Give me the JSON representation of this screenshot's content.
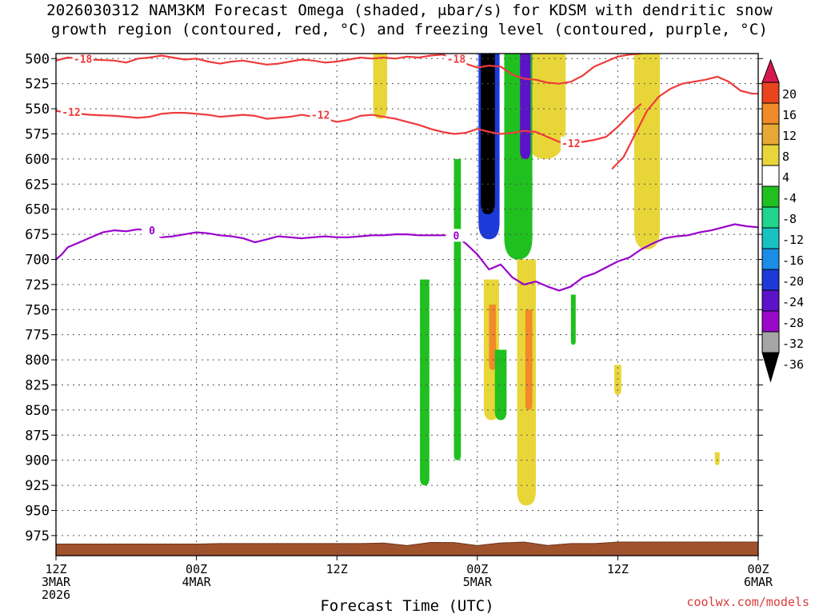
{
  "title": {
    "line1": "2026030312 NAM3KM Forecast Omega (shaded, μbar/s) for KDSM with dendritic snow",
    "line2": "growth region (contoured, red, °C) and freezing level (contoured, purple, °C)"
  },
  "credit": "coolwx.com/models",
  "colors": {
    "dgz_contour": "#ef3b3b",
    "freezing_contour": "#9a00cc",
    "ground": "#a0522d",
    "grid": "#555555"
  },
  "chart_data": {
    "type": "heatmap",
    "title": "2026030312 NAM3KM Forecast Omega (shaded, μbar/s) for KDSM with dendritic snow growth region (contoured, red, °C) and freezing level (contoured, purple, °C)",
    "xlabel": "Forecast Time (UTC)",
    "ylabel": "",
    "x_ticks": [
      {
        "hour": 0,
        "lines": [
          "12Z",
          "3MAR",
          "2026"
        ]
      },
      {
        "hour": 12,
        "lines": [
          "00Z",
          "4MAR"
        ]
      },
      {
        "hour": 24,
        "lines": [
          "12Z"
        ]
      },
      {
        "hour": 36,
        "lines": [
          "00Z",
          "5MAR"
        ]
      },
      {
        "hour": 48,
        "lines": [
          "12Z"
        ]
      },
      {
        "hour": 60,
        "lines": [
          "00Z",
          "6MAR"
        ]
      }
    ],
    "xlim": [
      0,
      60
    ],
    "y_ticks": [
      "500",
      "525",
      "550",
      "575",
      "600",
      "625",
      "650",
      "675",
      "700",
      "725",
      "750",
      "775",
      "800",
      "825",
      "850",
      "875",
      "900",
      "925",
      "950",
      "975"
    ],
    "ylim": [
      495,
      995
    ],
    "colorbar": {
      "labels": [
        "20",
        "16",
        "12",
        "8",
        "4",
        "-4",
        "-8",
        "-12",
        "-16",
        "-20",
        "-24",
        "-28",
        "-32",
        "-36"
      ],
      "colors": [
        "#d8174f",
        "#e8451f",
        "#f08a2a",
        "#e7a933",
        "#e8d638",
        "#ffffff",
        "#1fc01f",
        "#21d48b",
        "#19c2c2",
        "#1a8ee6",
        "#1b3ad8",
        "#5c12c8",
        "#9a08c8",
        "#a6a6a6",
        "#000000"
      ]
    },
    "contours": {
      "dgz_minus18": {
        "label": "-18",
        "points": [
          [
            0,
            502
          ],
          [
            1,
            499
          ],
          [
            3,
            501
          ],
          [
            5,
            502
          ],
          [
            6,
            504
          ],
          [
            7,
            500
          ],
          [
            8,
            499
          ],
          [
            9,
            497
          ],
          [
            10,
            499
          ],
          [
            11,
            501
          ],
          [
            12,
            500
          ],
          [
            13,
            503
          ],
          [
            14,
            505
          ],
          [
            15,
            503
          ],
          [
            16,
            502
          ],
          [
            17,
            504
          ],
          [
            18,
            506
          ],
          [
            19,
            505
          ],
          [
            20,
            503
          ],
          [
            21,
            501
          ],
          [
            22,
            502
          ],
          [
            23,
            504
          ],
          [
            24,
            503
          ],
          [
            25,
            501
          ],
          [
            26,
            499
          ],
          [
            27,
            500
          ],
          [
            28,
            499
          ],
          [
            29,
            500
          ],
          [
            30,
            498
          ],
          [
            31,
            499
          ],
          [
            32,
            497
          ],
          [
            33,
            496
          ],
          [
            34,
            499
          ],
          [
            35,
            505
          ],
          [
            36,
            509
          ],
          [
            37,
            507
          ],
          [
            38,
            508
          ],
          [
            39,
            516
          ],
          [
            40,
            520
          ],
          [
            41,
            521
          ],
          [
            42,
            524
          ],
          [
            43,
            525
          ],
          [
            44,
            523
          ],
          [
            45,
            517
          ],
          [
            46,
            508
          ],
          [
            47,
            503
          ],
          [
            48,
            498
          ],
          [
            49,
            496
          ],
          [
            50,
            495
          ]
        ]
      },
      "dgz_minus18_right": {
        "points": [
          [
            47.5,
            610
          ],
          [
            48.5,
            598
          ],
          [
            49.5,
            575
          ],
          [
            50.5,
            552
          ],
          [
            51.5,
            538
          ],
          [
            52.5,
            530
          ],
          [
            53.5,
            525
          ],
          [
            54.5,
            523
          ],
          [
            55.5,
            521
          ],
          [
            56.5,
            518
          ],
          [
            57.5,
            523
          ],
          [
            58.5,
            532
          ],
          [
            59.5,
            535
          ],
          [
            60,
            535
          ]
        ]
      },
      "dgz_minus12": {
        "label": "-12",
        "points": [
          [
            0,
            552
          ],
          [
            1,
            554
          ],
          [
            3,
            556
          ],
          [
            5,
            557
          ],
          [
            7,
            559
          ],
          [
            8,
            558
          ],
          [
            9,
            555
          ],
          [
            10,
            554
          ],
          [
            11,
            554
          ],
          [
            12,
            555
          ],
          [
            13,
            556
          ],
          [
            14,
            558
          ],
          [
            15,
            557
          ],
          [
            16,
            556
          ],
          [
            17,
            557
          ],
          [
            18,
            560
          ],
          [
            19,
            559
          ],
          [
            20,
            558
          ],
          [
            21,
            556
          ],
          [
            22,
            558
          ],
          [
            23,
            560
          ],
          [
            24,
            563
          ],
          [
            25,
            561
          ],
          [
            26,
            557
          ],
          [
            27,
            556
          ],
          [
            28,
            558
          ],
          [
            29,
            560
          ],
          [
            30,
            563
          ],
          [
            31,
            566
          ],
          [
            32,
            570
          ],
          [
            33,
            573
          ],
          [
            34,
            575
          ],
          [
            35,
            574
          ],
          [
            36,
            570
          ],
          [
            37,
            573
          ],
          [
            38,
            575
          ],
          [
            39,
            574
          ],
          [
            40,
            572
          ],
          [
            41,
            573
          ],
          [
            42,
            578
          ],
          [
            43,
            583
          ],
          [
            44,
            585
          ],
          [
            45,
            583
          ],
          [
            46,
            581
          ],
          [
            47,
            578
          ],
          [
            48,
            568
          ],
          [
            49,
            556
          ],
          [
            50,
            545
          ]
        ]
      },
      "freezing_level": {
        "label": "0",
        "points": [
          [
            0,
            700
          ],
          [
            0.5,
            695
          ],
          [
            1,
            688
          ],
          [
            2,
            683
          ],
          [
            3,
            678
          ],
          [
            4,
            673
          ],
          [
            5,
            671
          ],
          [
            6,
            672
          ],
          [
            7,
            670
          ],
          [
            8,
            671
          ],
          [
            9,
            678
          ],
          [
            10,
            677
          ],
          [
            11,
            675
          ],
          [
            12,
            673
          ],
          [
            13,
            674
          ],
          [
            14,
            676
          ],
          [
            15,
            677
          ],
          [
            16,
            679
          ],
          [
            17,
            683
          ],
          [
            18,
            680
          ],
          [
            19,
            677
          ],
          [
            20,
            678
          ],
          [
            21,
            679
          ],
          [
            22,
            678
          ],
          [
            23,
            677
          ],
          [
            24,
            678
          ],
          [
            25,
            678
          ],
          [
            26,
            677
          ],
          [
            27,
            676
          ],
          [
            28,
            676
          ],
          [
            29,
            675
          ],
          [
            30,
            675
          ],
          [
            31,
            676
          ],
          [
            32,
            676
          ],
          [
            33,
            676
          ],
          [
            34,
            676
          ],
          [
            35,
            684
          ],
          [
            36,
            695
          ],
          [
            37,
            710
          ],
          [
            38,
            705
          ],
          [
            39,
            718
          ],
          [
            40,
            725
          ],
          [
            41,
            722
          ],
          [
            42,
            727
          ],
          [
            43,
            731
          ],
          [
            44,
            727
          ],
          [
            45,
            718
          ],
          [
            46,
            714
          ],
          [
            47,
            708
          ],
          [
            48,
            702
          ],
          [
            49,
            698
          ],
          [
            50,
            690
          ],
          [
            51,
            684
          ],
          [
            52,
            679
          ],
          [
            53,
            677
          ],
          [
            54,
            676
          ],
          [
            55,
            673
          ],
          [
            56,
            671
          ],
          [
            57,
            668
          ],
          [
            58,
            665
          ],
          [
            59,
            667
          ],
          [
            60,
            668
          ]
        ]
      }
    },
    "omega_regions": [
      {
        "level": "black",
        "value": "-36",
        "x_center": 36.9,
        "p_top": 495,
        "p_bottom": 655,
        "width": 1.2
      },
      {
        "level": "blue",
        "value": "-20",
        "x_center": 37.0,
        "p_top": 495,
        "p_bottom": 680,
        "width": 1.8
      },
      {
        "level": "purple",
        "value": "-28",
        "x_center": 40.1,
        "p_top": 495,
        "p_bottom": 600,
        "width": 0.9
      },
      {
        "level": "green",
        "value": "-8",
        "x_center": 39.5,
        "p_top": 495,
        "p_bottom": 700,
        "width": 2.4
      },
      {
        "level": "green",
        "value": "-8",
        "x_center": 31.5,
        "p_top": 720,
        "p_bottom": 925,
        "width": 0.8
      },
      {
        "level": "green",
        "value": "-8",
        "x_center": 34.3,
        "p_top": 600,
        "p_bottom": 900,
        "width": 0.6
      },
      {
        "level": "green",
        "value": "-8",
        "x_center": 38.0,
        "p_top": 790,
        "p_bottom": 860,
        "width": 1.0
      },
      {
        "level": "green",
        "value": "-8",
        "x_center": 44.2,
        "p_top": 735,
        "p_bottom": 785,
        "width": 0.4
      },
      {
        "level": "yellow",
        "value": "4",
        "x_center": 27.7,
        "p_top": 495,
        "p_bottom": 560,
        "width": 1.2
      },
      {
        "level": "yellow",
        "value": "4",
        "x_center": 41.8,
        "p_top": 495,
        "p_bottom": 600,
        "width": 3.5
      },
      {
        "level": "yellow",
        "value": "4",
        "x_center": 50.5,
        "p_top": 495,
        "p_bottom": 690,
        "width": 2.2
      },
      {
        "level": "yellow",
        "value": "4",
        "x_center": 37.2,
        "p_top": 720,
        "p_bottom": 860,
        "width": 1.3
      },
      {
        "level": "yellow",
        "value": "4",
        "x_center": 40.2,
        "p_top": 700,
        "p_bottom": 945,
        "width": 1.6
      },
      {
        "level": "orange",
        "value": "8",
        "x_center": 37.3,
        "p_top": 745,
        "p_bottom": 810,
        "width": 0.6
      },
      {
        "level": "orange",
        "value": "8",
        "x_center": 40.4,
        "p_top": 750,
        "p_bottom": 850,
        "width": 0.6
      },
      {
        "level": "yellow",
        "value": "4",
        "x_center": 48.0,
        "p_top": 805,
        "p_bottom": 835,
        "width": 0.6
      },
      {
        "level": "yellow",
        "value": "4",
        "x_center": 56.5,
        "p_top": 892,
        "p_bottom": 905,
        "width": 0.3
      }
    ]
  }
}
